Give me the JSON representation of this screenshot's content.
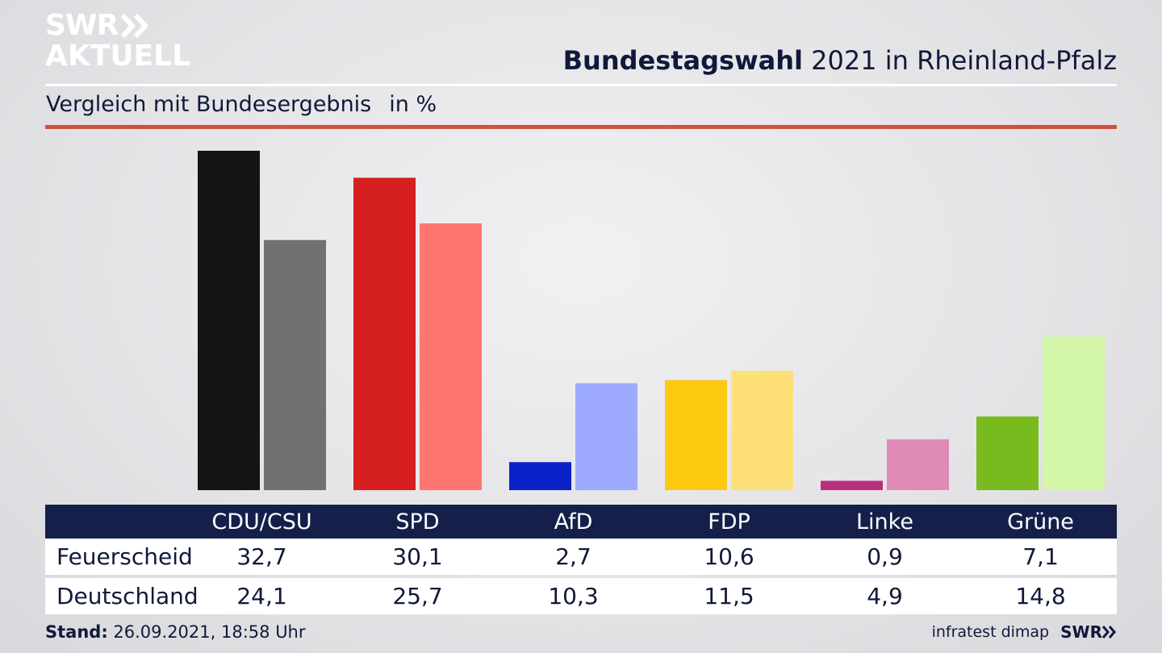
{
  "logo": {
    "line1": "SWR",
    "line2": "AKTUELL",
    "color": "#ffffff"
  },
  "header": {
    "title_bold": "Bundestagswahl",
    "title_rest": "2021 in Rheinland-Pfalz",
    "subtitle": "Vergleich mit Bundesergebnis",
    "unit": "in %"
  },
  "chart_data": {
    "type": "bar",
    "categories": [
      "CDU/CSU",
      "SPD",
      "AfD",
      "FDP",
      "Linke",
      "Grüne"
    ],
    "series": [
      {
        "name": "Feuerscheid",
        "values": [
          32.7,
          30.1,
          2.7,
          10.6,
          0.9,
          7.1
        ],
        "colors": [
          "#141414",
          "#d61f1f",
          "#0a22c8",
          "#fcc810",
          "#bc2f7d",
          "#78bb1e"
        ]
      },
      {
        "name": "Deutschland",
        "values": [
          24.1,
          25.7,
          10.3,
          11.5,
          4.9,
          14.8
        ],
        "colors": [
          "#737170",
          "#ff7670",
          "#9eaafe",
          "#fde178",
          "#e08ab8",
          "#d3f6a8"
        ]
      }
    ],
    "ylim": [
      0,
      32.7
    ],
    "grid": false,
    "legend": "table-below"
  },
  "table": {
    "rows": [
      {
        "label": "Feuerscheid",
        "values": [
          "32,7",
          "30,1",
          "2,7",
          "10,6",
          "0,9",
          "7,1"
        ]
      },
      {
        "label": "Deutschland",
        "values": [
          "24,1",
          "25,7",
          "10,3",
          "11,5",
          "4,9",
          "14,8"
        ]
      }
    ]
  },
  "footer": {
    "stand_label": "Stand:",
    "stand_value": "26.09.2021, 18:58 Uhr",
    "source": "infratest dimap",
    "brand": "SWR"
  }
}
